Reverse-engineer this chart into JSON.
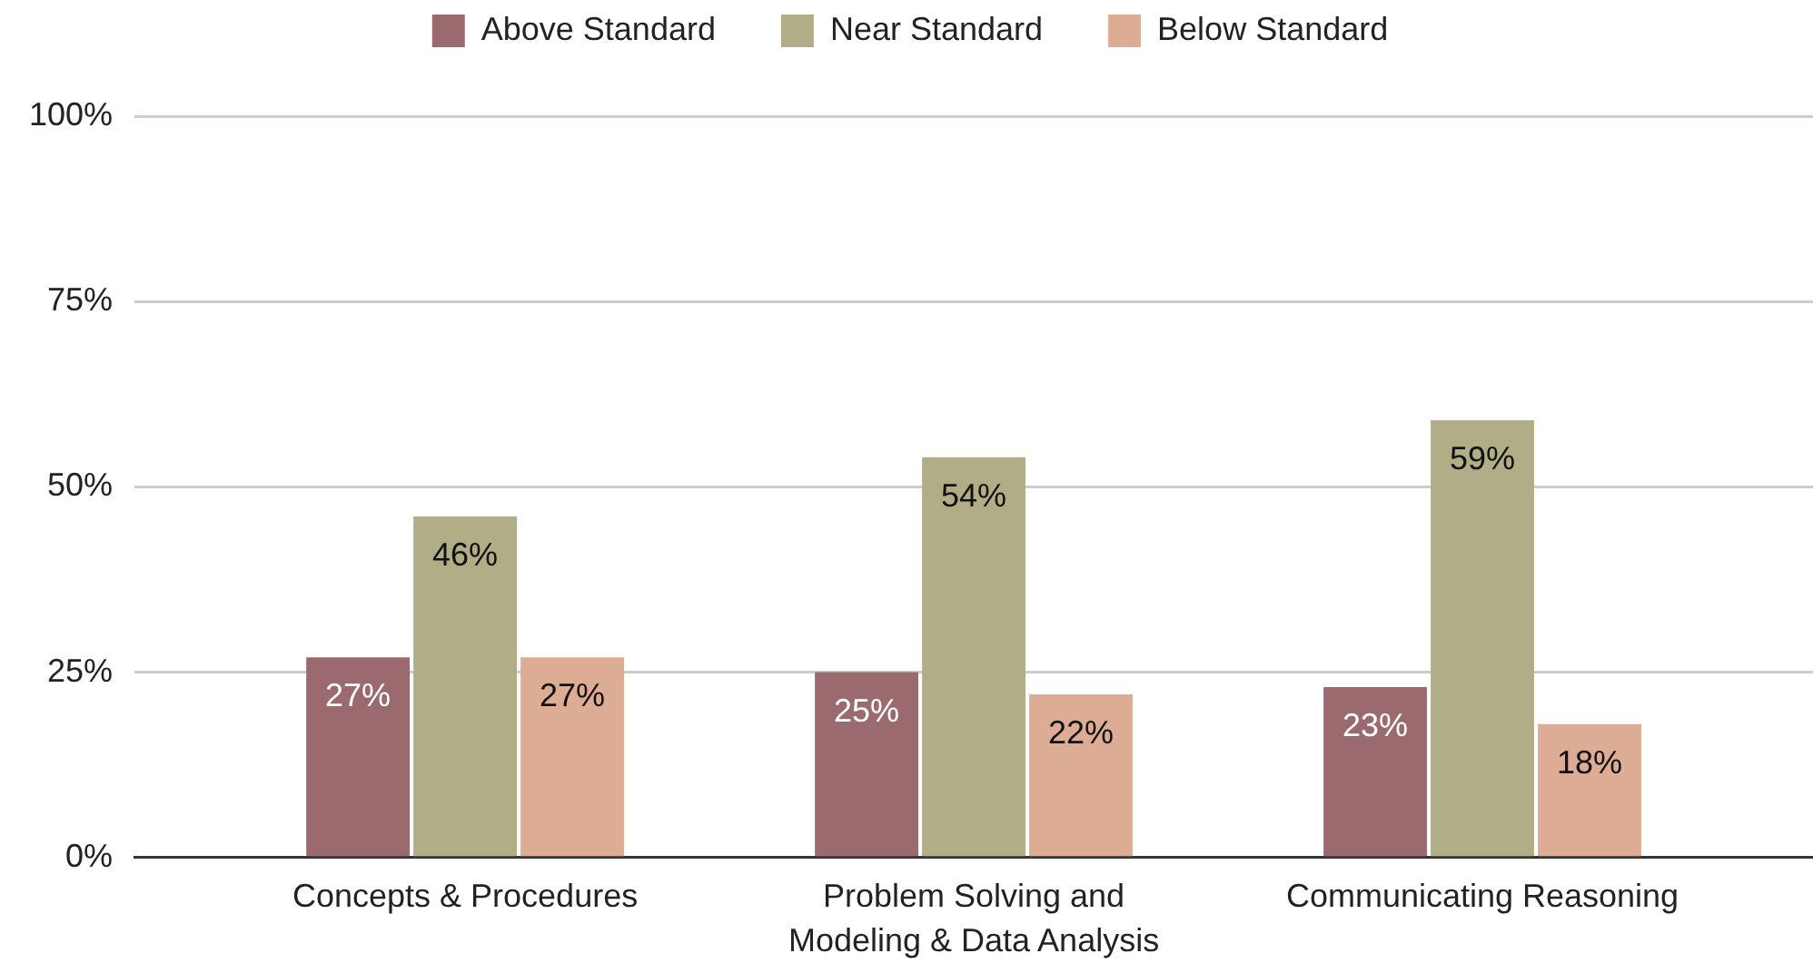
{
  "chart_data": {
    "type": "bar",
    "categories": [
      "Concepts & Procedures",
      "Problem Solving and Modeling & Data Analysis",
      "Communicating Reasoning"
    ],
    "series": [
      {
        "name": "Above Standard",
        "color": "#9b6a6f",
        "values": [
          27,
          25,
          23
        ],
        "value_labels": [
          "27%",
          "25%",
          "23%"
        ]
      },
      {
        "name": "Near Standard",
        "color": "#b1ad87",
        "values": [
          46,
          54,
          59
        ],
        "value_labels": [
          "46%",
          "54%",
          "59%"
        ]
      },
      {
        "name": "Below Standard",
        "color": "#ddac95",
        "values": [
          27,
          22,
          18
        ],
        "value_labels": [
          "27%",
          "22%",
          "18%"
        ]
      }
    ],
    "ylim": [
      0,
      100
    ],
    "yticks": [
      {
        "value": 0,
        "label": "0%"
      },
      {
        "value": 25,
        "label": "25%"
      },
      {
        "value": 50,
        "label": "50%"
      },
      {
        "value": 75,
        "label": "75%"
      },
      {
        "value": 100,
        "label": "100%"
      }
    ],
    "grid": "y",
    "legend": "top"
  }
}
